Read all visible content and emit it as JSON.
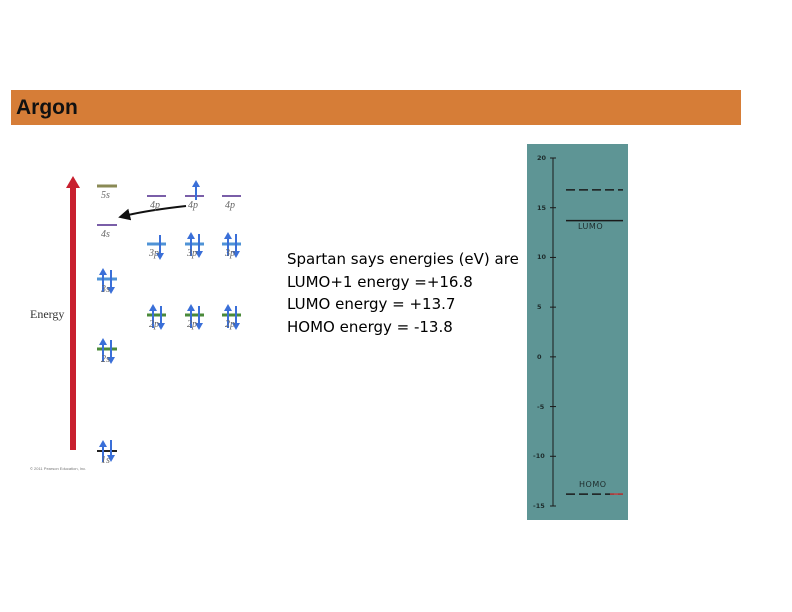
{
  "slide": {
    "title": "Argon"
  },
  "orbital_diagram": {
    "energy_label": "Energy",
    "copyright": "© 2011 Pearson Education, Inc.",
    "levels": {
      "s5": "5s",
      "s4": "4s",
      "p4": "4p",
      "p3": "3p",
      "s3": "3s",
      "p2": "2p",
      "s2": "2s",
      "s1": "1s"
    },
    "colors": {
      "arrow_axis": "#c8202f",
      "electron": "#3a6fd8",
      "filled_1s": "#222222",
      "level_5s": "#8a8a55",
      "level_4": "#7a5ea8",
      "level_3": "#4f93d6",
      "level_2": "#4a8a3a"
    }
  },
  "spartan": {
    "intro": "Spartan says energies (eV) are",
    "lumo1": "LUMO+1 energy =+16.8",
    "lumo": "LUMO energy = +13.7",
    "homo": "HOMO energy = -13.8"
  },
  "mo_chart": {
    "ticks": [
      "20",
      "15",
      "10",
      "5",
      "0",
      "-5",
      "-10",
      "-15"
    ],
    "lumo_label": "LUMO",
    "homo_label": "HOMO",
    "colors": {
      "background": "#5e9595",
      "lines": "#1a1a1a",
      "accent": "#c04040"
    }
  },
  "chart_data": {
    "type": "diagram",
    "ylim": [
      -15,
      20
    ],
    "levels": [
      {
        "label": "",
        "energy": 16.8,
        "style": "dashed"
      },
      {
        "label": "LUMO",
        "energy": 13.7,
        "style": "solid"
      },
      {
        "label": "HOMO",
        "energy": -13.8,
        "style": "dashed"
      }
    ]
  }
}
